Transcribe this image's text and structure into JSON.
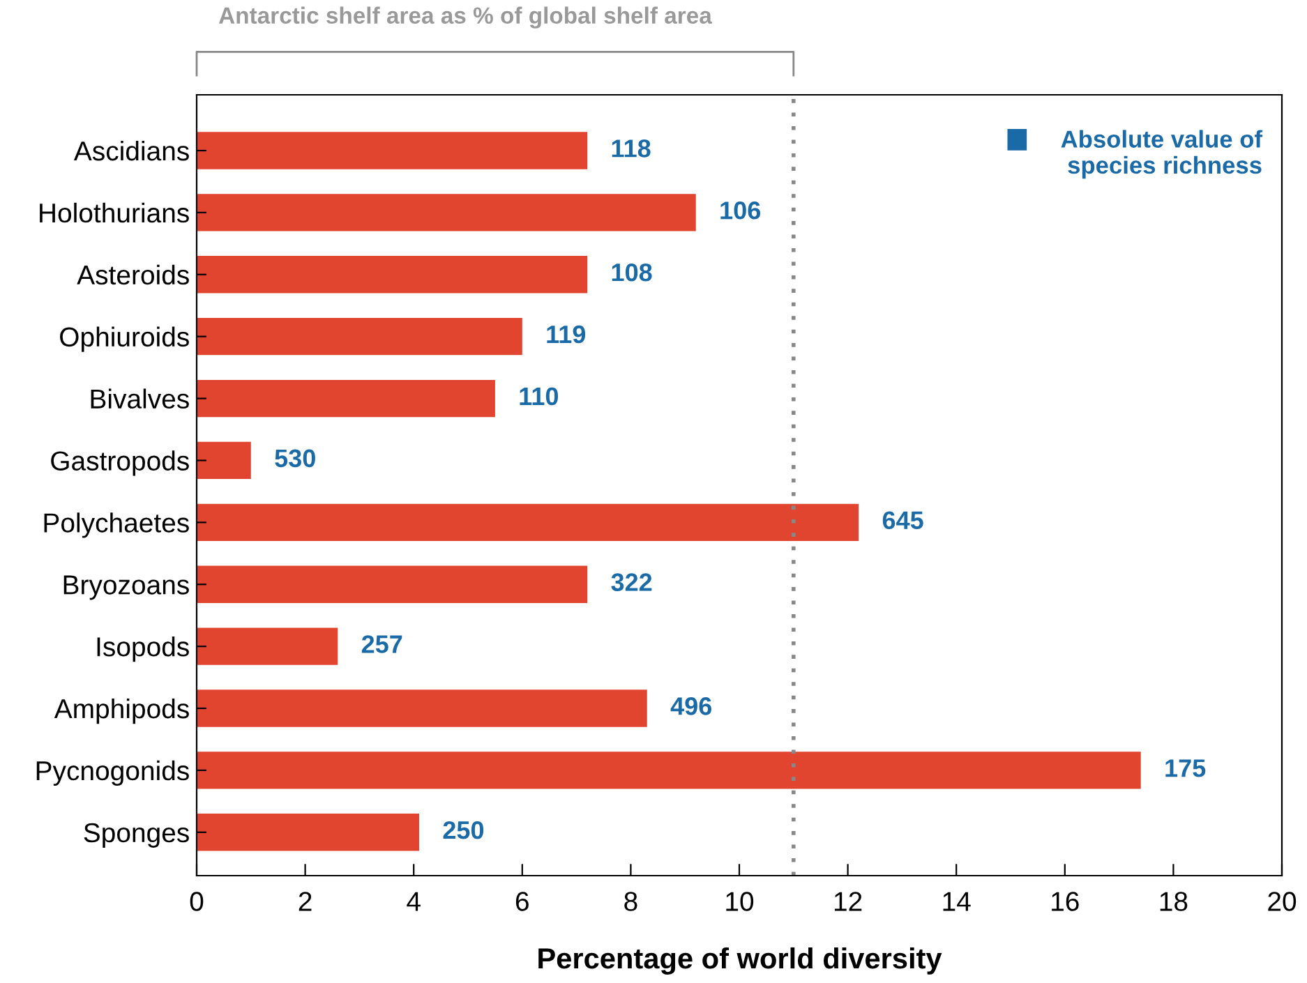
{
  "chart_data": {
    "type": "bar",
    "orientation": "horizontal",
    "xlabel": "Percentage of world diversity",
    "categories": [
      "Ascidians",
      "Holothurians",
      "Asteroids",
      "Ophiuroids",
      "Bivalves",
      "Gastropods",
      "Polychaetes",
      "Bryozoans",
      "Isopods",
      "Amphipods",
      "Pycnogonids",
      "Sponges"
    ],
    "values": [
      7.2,
      9.2,
      7.2,
      6.0,
      5.5,
      1.0,
      12.2,
      7.2,
      2.6,
      8.3,
      17.4,
      4.1
    ],
    "color": "#e2452f",
    "xlim": [
      0,
      20
    ],
    "xticks": [
      0,
      2,
      4,
      6,
      8,
      10,
      12,
      14,
      16,
      18,
      20
    ],
    "ref_lines": [
      {
        "axis": "x",
        "value": 11,
        "label": "Antarctic shelf area as % of global shelf area",
        "color": "#888888",
        "line_style": "dotted"
      }
    ],
    "annotations": [
      "Absolute value of\nspecies richness",
      {
        "text": "118",
        "x": 7.2,
        "y": "Ascidians"
      },
      {
        "text": "106",
        "x": 9.2,
        "y": "Holothurians"
      },
      {
        "text": "108",
        "x": 7.2,
        "y": "Asteroids"
      },
      {
        "text": "119",
        "x": 6.0,
        "y": "Ophiuroids"
      },
      {
        "text": "110",
        "x": 5.5,
        "y": "Bivalves"
      },
      {
        "text": "530",
        "x": 1.0,
        "y": "Gastropods"
      },
      {
        "text": "645",
        "x": 12.2,
        "y": "Polychaetes"
      },
      {
        "text": "322",
        "x": 7.2,
        "y": "Bryozoans"
      },
      {
        "text": "257",
        "x": 2.6,
        "y": "Isopods"
      },
      {
        "text": "496",
        "x": 8.3,
        "y": "Amphipods"
      },
      {
        "text": "175",
        "x": 17.4,
        "y": "Pycnogonids"
      },
      {
        "text": "250",
        "x": 4.1,
        "y": "Sponges"
      }
    ],
    "grid": false
  }
}
